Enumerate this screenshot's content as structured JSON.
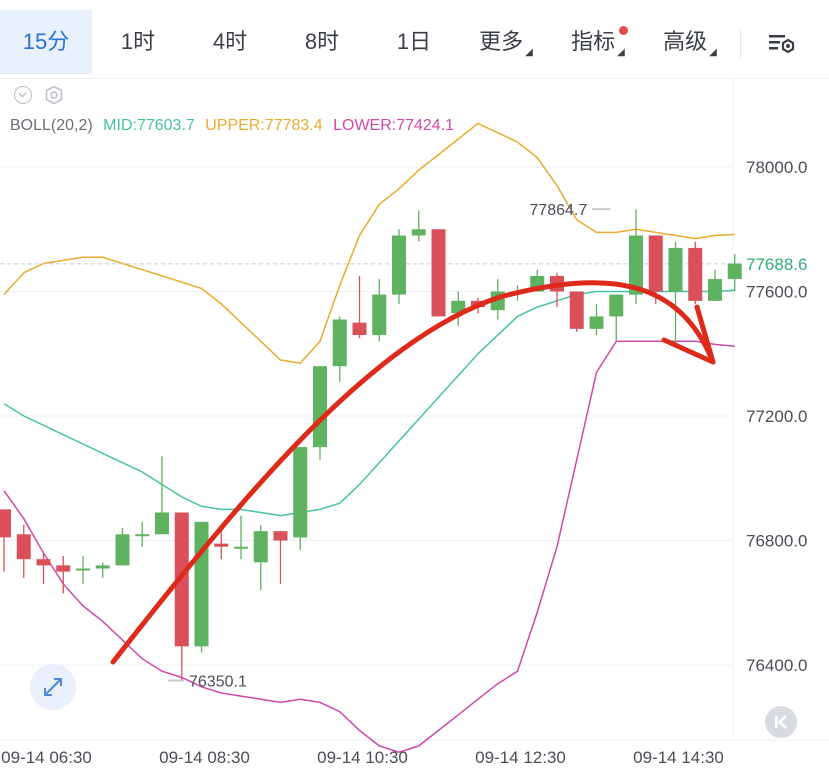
{
  "tabs": [
    {
      "label": "15分",
      "active": true
    },
    {
      "label": "1时",
      "active": false
    },
    {
      "label": "4时",
      "active": false
    },
    {
      "label": "8时",
      "active": false
    },
    {
      "label": "1日",
      "active": false
    },
    {
      "label": "更多",
      "active": false,
      "dropdown": true
    },
    {
      "label": "指标",
      "active": false,
      "dropdown": true,
      "dot": true
    },
    {
      "label": "高级",
      "active": false,
      "dropdown": true
    }
  ],
  "indicator": {
    "name": "BOLL(20,2)",
    "mid": "MID:77603.7",
    "upper": "UPPER:77783.4",
    "lower": "LOWER:77424.1"
  },
  "colors": {
    "up": "#5fb25f",
    "down": "#d9505a",
    "mid": "#49c2a2",
    "upper": "#e9ab2f",
    "lower": "#cf4aa6",
    "arrow": "#dd2a1a",
    "active_tab": "#2f6fd8",
    "last_price": "#2fae78"
  },
  "icons": [
    "eye-icon",
    "settings-hexagon-icon",
    "chart-settings-icon",
    "expand-icon",
    "rewind-icon"
  ],
  "chart_data": {
    "type": "candlestick",
    "interval": "15分",
    "y_ticks": [
      78000,
      77600,
      77200,
      76800,
      76400
    ],
    "y_tick_labels": [
      "78000.0",
      "77600.0",
      "77200.0",
      "76800.0",
      "76400.0"
    ],
    "ylim": [
      76000,
      78400
    ],
    "x_tick_labels": [
      "09-14 06:30",
      "09-14 08:30",
      "09-14 10:30",
      "09-14 12:30",
      "09-14 14:30"
    ],
    "x_tick_index": [
      2,
      10,
      18,
      26,
      34
    ],
    "last_price": 77688.6,
    "last_price_label": "77688.6",
    "high_annotation": {
      "index": 31,
      "value": 77864.7,
      "label": "77864.7"
    },
    "low_annotation": {
      "index": 8,
      "value": 76350.1,
      "label": "76350.1"
    },
    "candles": [
      {
        "o": 76900,
        "h": 76900,
        "c": 76810,
        "l": 76700
      },
      {
        "o": 76820,
        "h": 76850,
        "c": 76740,
        "l": 76680
      },
      {
        "o": 76740,
        "h": 76760,
        "c": 76720,
        "l": 76660
      },
      {
        "o": 76720,
        "h": 76750,
        "c": 76700,
        "l": 76630
      },
      {
        "o": 76710,
        "h": 76750,
        "c": 76710,
        "l": 76660
      },
      {
        "o": 76710,
        "h": 76730,
        "c": 76720,
        "l": 76680
      },
      {
        "o": 76720,
        "h": 76840,
        "c": 76820,
        "l": 76720
      },
      {
        "o": 76820,
        "h": 76860,
        "c": 76820,
        "l": 76780
      },
      {
        "o": 76820,
        "h": 77070,
        "c": 76890,
        "l": 76820
      },
      {
        "o": 76890,
        "h": 76890,
        "c": 76460,
        "l": 76350
      },
      {
        "o": 76460,
        "h": 76860,
        "c": 76860,
        "l": 76440
      },
      {
        "o": 76790,
        "h": 76840,
        "c": 76780,
        "l": 76740
      },
      {
        "o": 76780,
        "h": 76880,
        "c": 76780,
        "l": 76740
      },
      {
        "o": 76730,
        "h": 76850,
        "c": 76830,
        "l": 76640
      },
      {
        "o": 76830,
        "h": 76830,
        "c": 76800,
        "l": 76660
      },
      {
        "o": 76810,
        "h": 77100,
        "c": 77100,
        "l": 76770
      },
      {
        "o": 77100,
        "h": 77360,
        "c": 77360,
        "l": 77060
      },
      {
        "o": 77360,
        "h": 77520,
        "c": 77510,
        "l": 77310
      },
      {
        "o": 77500,
        "h": 77650,
        "c": 77460,
        "l": 77450
      },
      {
        "o": 77460,
        "h": 77640,
        "c": 77590,
        "l": 77440
      },
      {
        "o": 77590,
        "h": 77800,
        "c": 77780,
        "l": 77560
      },
      {
        "o": 77780,
        "h": 77860,
        "c": 77800,
        "l": 77760
      },
      {
        "o": 77800,
        "h": 77800,
        "c": 77520,
        "l": 77520
      },
      {
        "o": 77530,
        "h": 77600,
        "c": 77570,
        "l": 77490
      },
      {
        "o": 77570,
        "h": 77580,
        "c": 77550,
        "l": 77530
      },
      {
        "o": 77540,
        "h": 77640,
        "c": 77600,
        "l": 77510
      },
      {
        "o": 77600,
        "h": 77620,
        "c": 77600,
        "l": 77570
      },
      {
        "o": 77600,
        "h": 77670,
        "c": 77650,
        "l": 77600
      },
      {
        "o": 77650,
        "h": 77660,
        "c": 77600,
        "l": 77550
      },
      {
        "o": 77600,
        "h": 77600,
        "c": 77480,
        "l": 77470
      },
      {
        "o": 77480,
        "h": 77560,
        "c": 77520,
        "l": 77460
      },
      {
        "o": 77520,
        "h": 77590,
        "c": 77590,
        "l": 77440
      },
      {
        "o": 77590,
        "h": 77864.7,
        "c": 77780,
        "l": 77560
      },
      {
        "o": 77780,
        "h": 77780,
        "c": 77600,
        "l": 77560
      },
      {
        "o": 77600,
        "h": 77760,
        "c": 77740,
        "l": 77420
      },
      {
        "o": 77740,
        "h": 77760,
        "c": 77570,
        "l": 77560
      },
      {
        "o": 77570,
        "h": 77670,
        "c": 77640,
        "l": 77570
      },
      {
        "o": 77640,
        "h": 77720,
        "c": 77690,
        "l": 77600
      }
    ],
    "boll_upper": [
      77590,
      77660,
      77690,
      77700,
      77710,
      77710,
      77690,
      77670,
      77650,
      77630,
      77610,
      77560,
      77500,
      77440,
      77380,
      77370,
      77440,
      77620,
      77780,
      77880,
      77930,
      77990,
      78040,
      78090,
      78140,
      78110,
      78080,
      78030,
      77940,
      77830,
      77790,
      77790,
      77800,
      77790,
      77780,
      77770,
      77780,
      77783.4
    ],
    "boll_mid": [
      77240,
      77200,
      77170,
      77140,
      77110,
      77080,
      77050,
      77020,
      76980,
      76940,
      76910,
      76900,
      76900,
      76890,
      76880,
      76890,
      76900,
      76920,
      76980,
      77050,
      77120,
      77190,
      77260,
      77330,
      77400,
      77460,
      77520,
      77550,
      77570,
      77590,
      77600,
      77600,
      77600,
      77600,
      77600,
      77600,
      77600,
      77603.7
    ],
    "boll_lower": [
      76960,
      76870,
      76760,
      76660,
      76590,
      76540,
      76480,
      76420,
      76380,
      76360,
      76330,
      76310,
      76300,
      76290,
      76280,
      76290,
      76280,
      76250,
      76190,
      76140,
      76120,
      76140,
      76190,
      76240,
      76290,
      76340,
      76380,
      76570,
      76780,
      77060,
      77340,
      77440,
      77440,
      77440,
      77440,
      77440,
      77430,
      77424.1
    ]
  }
}
